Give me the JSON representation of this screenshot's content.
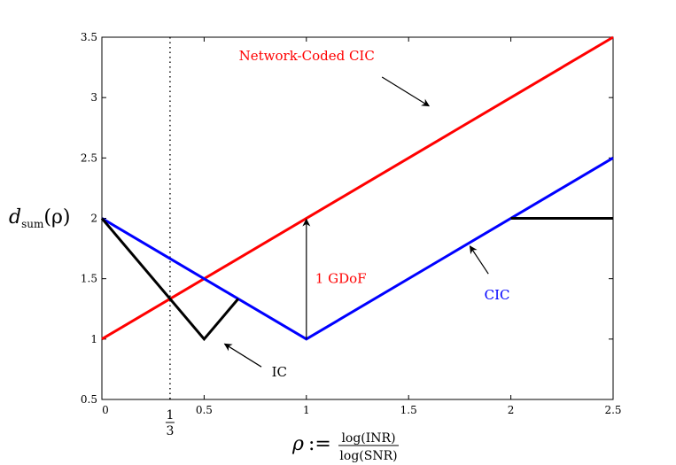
{
  "chart_data": {
    "type": "line",
    "x_range": [
      0,
      2.5
    ],
    "y_range": [
      0.5,
      3.5
    ],
    "x_ticks": [
      "0",
      "0.5",
      "1",
      "1.5",
      "2",
      "2.5"
    ],
    "y_ticks": [
      "0.5",
      "1",
      "1.5",
      "2",
      "2.5",
      "3",
      "3.5"
    ],
    "xlabel": {
      "rho": "ρ",
      "assign": ":=",
      "numerator": "log(INR)",
      "denominator": "log(SNR)"
    },
    "ylabel": {
      "main": "d",
      "sub": "sum",
      "arg": "(ρ)"
    },
    "special_tick": {
      "x": 0.3333,
      "numerator": "1",
      "denominator": "3"
    },
    "grid": false,
    "series": [
      {
        "name": "Network-Coded CIC",
        "color": "#ff0000",
        "points": [
          [
            0,
            1
          ],
          [
            2.5,
            3.5
          ]
        ]
      },
      {
        "name": "CIC",
        "color": "#0000ff",
        "points": [
          [
            0,
            2
          ],
          [
            1,
            1
          ],
          [
            2.5,
            2.5
          ]
        ]
      },
      {
        "name": "IC",
        "color": "#000000",
        "points": [
          [
            0,
            2
          ],
          [
            0.5,
            1
          ],
          [
            0.6667,
            1.3333
          ]
        ]
      },
      {
        "name": "IC-high",
        "color": "#000000",
        "points": [
          [
            2,
            2
          ],
          [
            2.5,
            2
          ]
        ]
      }
    ],
    "annotations": [
      {
        "text": "Network-Coded CIC",
        "color": "#ff0000",
        "text_at": [
          0.67,
          3.31
        ],
        "arrow_from": [
          1.37,
          3.17
        ],
        "arrow_to": [
          1.6,
          2.93
        ]
      },
      {
        "text": "CIC",
        "color": "#0000ff",
        "text_at": [
          1.87,
          1.33
        ],
        "arrow_from": [
          1.89,
          1.54
        ],
        "arrow_to": [
          1.8,
          1.77
        ]
      },
      {
        "text": "IC",
        "color": "#000000",
        "text_at": [
          0.83,
          0.69
        ],
        "arrow_from": [
          0.78,
          0.77
        ],
        "arrow_to": [
          0.6,
          0.96
        ]
      }
    ],
    "gap": {
      "text": "1 GDoF",
      "color": "#ff0000",
      "x": 1,
      "y_from": 1,
      "y_to": 2
    }
  }
}
